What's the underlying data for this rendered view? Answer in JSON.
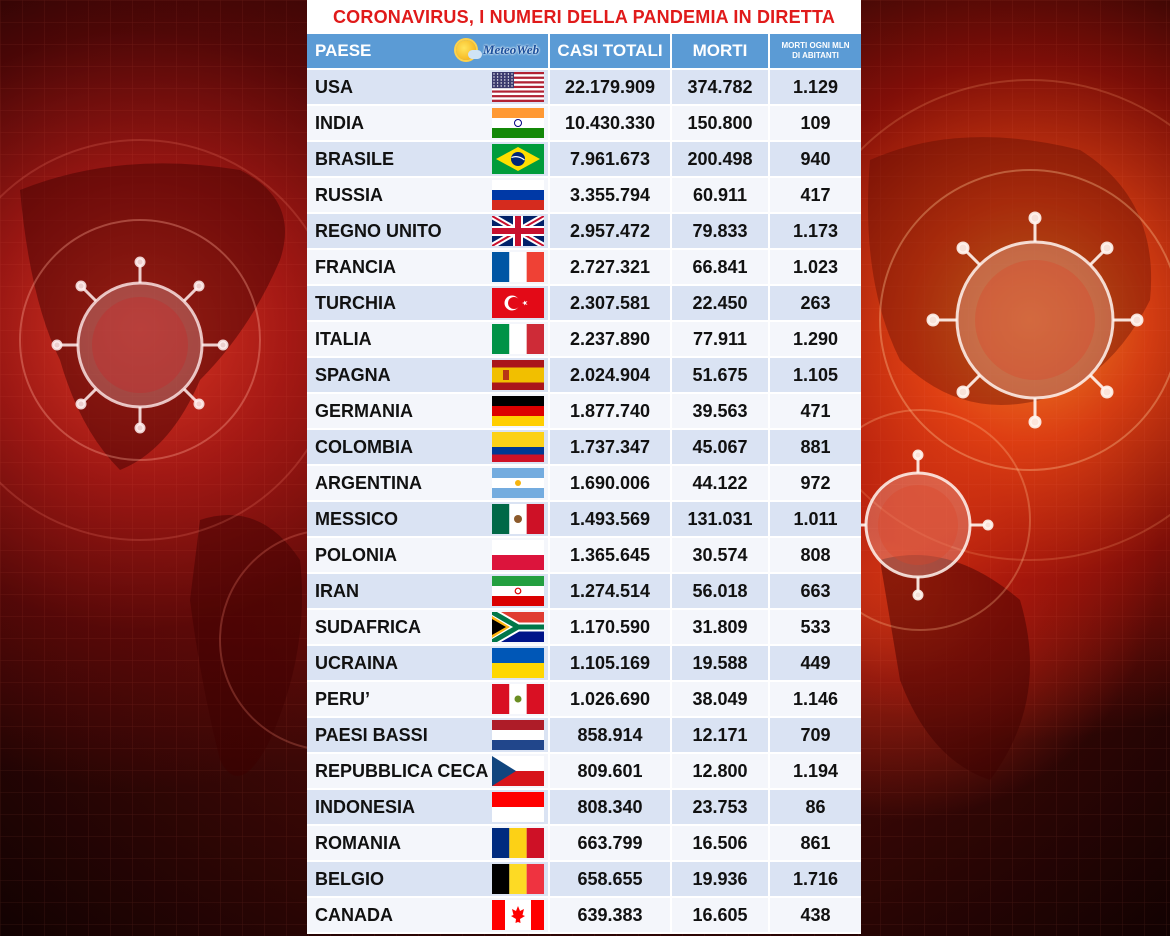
{
  "title": "CORONAVIRUS, I NUMERI DELLA PANDEMIA IN DIRETTA",
  "logo_text": "MeteoWeb",
  "headers": {
    "country": "PAESE",
    "cases": "CASI TOTALI",
    "deaths": "MORTI",
    "deaths_per_mln_line1": "MORTI OGNI MLN",
    "deaths_per_mln_line2": "DI ABITANTI"
  },
  "colors": {
    "title_red": "#e01a1a",
    "header_blue": "#5b9bd5",
    "row_light_blue": "#dae3f3",
    "row_white": "#f4f6fb"
  },
  "rows": [
    {
      "country": "USA",
      "flag": "us-flag",
      "cases": "22.179.909",
      "deaths": "374.782",
      "per_mln": "1.129"
    },
    {
      "country": "INDIA",
      "flag": "india-flag",
      "cases": "10.430.330",
      "deaths": "150.800",
      "per_mln": "109"
    },
    {
      "country": "BRASILE",
      "flag": "brazil-flag",
      "cases": "7.961.673",
      "deaths": "200.498",
      "per_mln": "940"
    },
    {
      "country": "RUSSIA",
      "flag": "russia-flag",
      "cases": "3.355.794",
      "deaths": "60.911",
      "per_mln": "417"
    },
    {
      "country": "REGNO UNITO",
      "flag": "uk-flag",
      "cases": "2.957.472",
      "deaths": "79.833",
      "per_mln": "1.173"
    },
    {
      "country": "FRANCIA",
      "flag": "france-flag",
      "cases": "2.727.321",
      "deaths": "66.841",
      "per_mln": "1.023"
    },
    {
      "country": "TURCHIA",
      "flag": "turkey-flag",
      "cases": "2.307.581",
      "deaths": "22.450",
      "per_mln": "263"
    },
    {
      "country": "ITALIA",
      "flag": "italy-flag",
      "cases": "2.237.890",
      "deaths": "77.911",
      "per_mln": "1.290"
    },
    {
      "country": "SPAGNA",
      "flag": "spain-flag",
      "cases": "2.024.904",
      "deaths": "51.675",
      "per_mln": "1.105"
    },
    {
      "country": "GERMANIA",
      "flag": "germany-flag",
      "cases": "1.877.740",
      "deaths": "39.563",
      "per_mln": "471"
    },
    {
      "country": "COLOMBIA",
      "flag": "colombia-flag",
      "cases": "1.737.347",
      "deaths": "45.067",
      "per_mln": "881"
    },
    {
      "country": "ARGENTINA",
      "flag": "argentina-flag",
      "cases": "1.690.006",
      "deaths": "44.122",
      "per_mln": "972"
    },
    {
      "country": "MESSICO",
      "flag": "mexico-flag",
      "cases": "1.493.569",
      "deaths": "131.031",
      "per_mln": "1.011"
    },
    {
      "country": "POLONIA",
      "flag": "poland-flag",
      "cases": "1.365.645",
      "deaths": "30.574",
      "per_mln": "808"
    },
    {
      "country": "IRAN",
      "flag": "iran-flag",
      "cases": "1.274.514",
      "deaths": "56.018",
      "per_mln": "663"
    },
    {
      "country": "SUDAFRICA",
      "flag": "south-africa-flag",
      "cases": "1.170.590",
      "deaths": "31.809",
      "per_mln": "533"
    },
    {
      "country": "UCRAINA",
      "flag": "ukraine-flag",
      "cases": "1.105.169",
      "deaths": "19.588",
      "per_mln": "449"
    },
    {
      "country": "PERU’",
      "flag": "peru-flag",
      "cases": "1.026.690",
      "deaths": "38.049",
      "per_mln": "1.146"
    },
    {
      "country": "PAESI BASSI",
      "flag": "netherlands-flag",
      "cases": "858.914",
      "deaths": "12.171",
      "per_mln": "709"
    },
    {
      "country": "REPUBBLICA CECA",
      "flag": "czech-flag",
      "cases": "809.601",
      "deaths": "12.800",
      "per_mln": "1.194"
    },
    {
      "country": "INDONESIA",
      "flag": "indonesia-flag",
      "cases": "808.340",
      "deaths": "23.753",
      "per_mln": "86"
    },
    {
      "country": "ROMANIA",
      "flag": "romania-flag",
      "cases": "663.799",
      "deaths": "16.506",
      "per_mln": "861"
    },
    {
      "country": "BELGIO",
      "flag": "belgium-flag",
      "cases": "658.655",
      "deaths": "19.936",
      "per_mln": "1.716"
    },
    {
      "country": "CANADA",
      "flag": "canada-flag",
      "cases": "639.383",
      "deaths": "16.605",
      "per_mln": "438"
    }
  ]
}
